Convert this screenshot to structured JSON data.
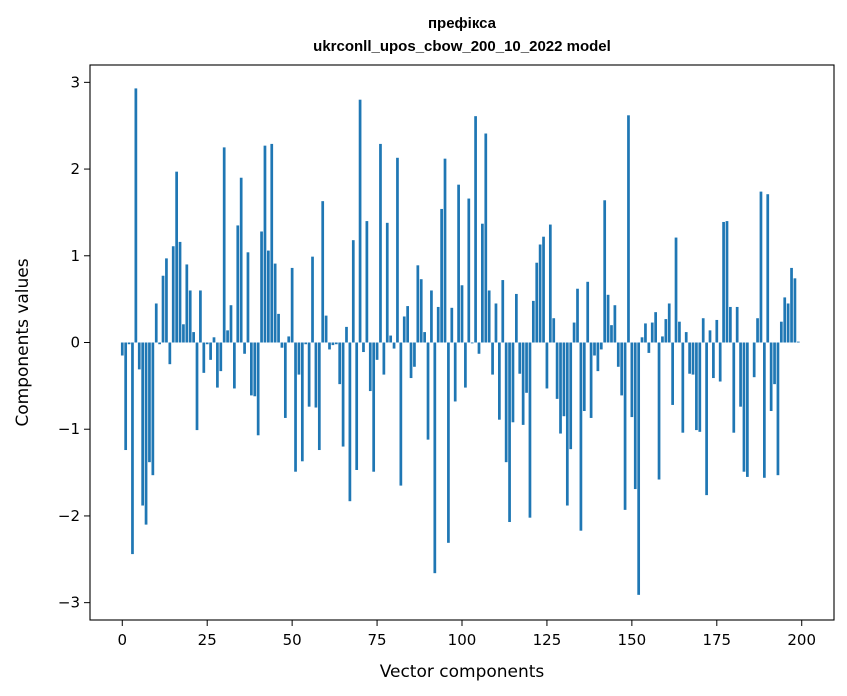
{
  "chart_data": {
    "type": "bar",
    "title": "префікса",
    "subtitle": "ukrconll_upos_cbow_200_10_2022 model",
    "xlabel": "Vector components",
    "ylabel": "Components values",
    "xlim": [
      -9.5,
      209.5
    ],
    "ylim": [
      -3.2,
      3.2
    ],
    "xticks": [
      0,
      25,
      50,
      75,
      100,
      125,
      150,
      175,
      200
    ],
    "xtick_labels": [
      "0",
      "25",
      "50",
      "75",
      "100",
      "125",
      "150",
      "175",
      "200"
    ],
    "yticks": [
      -3,
      -2,
      -1,
      0,
      1,
      2,
      3
    ],
    "ytick_labels": [
      "−3",
      "−2",
      "−1",
      "0",
      "1",
      "2",
      "3"
    ],
    "bar_color": "#1f77b4",
    "grid": false,
    "series": [
      {
        "values": [
          -0.15,
          -1.24,
          -0.02,
          -2.44,
          2.93,
          -0.31,
          -1.88,
          -2.1,
          -1.38,
          -1.53,
          0.45,
          -0.02,
          0.77,
          0.97,
          -0.25,
          1.11,
          1.97,
          1.16,
          0.21,
          0.9,
          0.6,
          0.12,
          -1.01,
          0.6,
          -0.35,
          -0.02,
          -0.2,
          0.06,
          -0.52,
          -0.33,
          2.25,
          0.14,
          0.43,
          -0.53,
          1.35,
          1.9,
          -0.13,
          1.04,
          -0.61,
          -0.62,
          -1.07,
          1.28,
          2.27,
          1.06,
          2.29,
          0.91,
          0.33,
          -0.06,
          -0.87,
          0.07,
          0.86,
          -1.49,
          -0.37,
          -1.37,
          -0.02,
          -0.74,
          0.99,
          -0.75,
          -1.24,
          1.63,
          0.31,
          -0.08,
          -0.03,
          -0.02,
          -0.48,
          -1.2,
          0.18,
          -1.83,
          1.18,
          -1.47,
          2.8,
          -0.11,
          1.4,
          -0.56,
          -1.49,
          -0.2,
          2.29,
          -0.37,
          1.38,
          0.08,
          -0.07,
          2.13,
          -1.65,
          0.3,
          0.42,
          -0.41,
          -0.28,
          0.89,
          0.73,
          0.12,
          -1.12,
          0.6,
          -2.66,
          0.41,
          1.54,
          2.12,
          -2.31,
          0.4,
          -0.68,
          1.82,
          0.66,
          -0.52,
          1.66,
          -0.01,
          2.61,
          -0.13,
          1.37,
          2.41,
          0.6,
          -0.37,
          0.45,
          -0.89,
          0.72,
          -1.38,
          -2.07,
          -0.92,
          0.56,
          -0.36,
          -0.95,
          -0.58,
          -2.02,
          0.48,
          0.92,
          1.13,
          1.22,
          -0.53,
          1.36,
          0.28,
          -0.65,
          -1.05,
          -0.85,
          -1.88,
          -1.23,
          0.23,
          0.62,
          -2.17,
          -0.79,
          0.7,
          -0.87,
          -0.15,
          -0.33,
          -0.08,
          1.64,
          0.55,
          0.2,
          0.43,
          -0.28,
          -0.61,
          -1.93,
          2.62,
          -0.86,
          -1.69,
          -2.91,
          0.06,
          0.22,
          -0.12,
          0.23,
          0.35,
          -1.58,
          0.07,
          0.27,
          0.45,
          -0.72,
          1.21,
          0.24,
          -1.04,
          0.12,
          -0.36,
          -0.37,
          -1.01,
          -1.03,
          0.28,
          -1.76,
          0.14,
          -0.41,
          0.26,
          -0.45,
          1.39,
          1.4,
          0.41,
          -1.04,
          0.41,
          -0.74,
          -1.49,
          -1.55,
          0.0,
          -0.4,
          0.28,
          1.74,
          -1.56,
          1.71,
          -0.79,
          -0.48,
          -1.53,
          0.24,
          0.52,
          0.45,
          0.86,
          0.74,
          0.01
        ]
      }
    ]
  }
}
